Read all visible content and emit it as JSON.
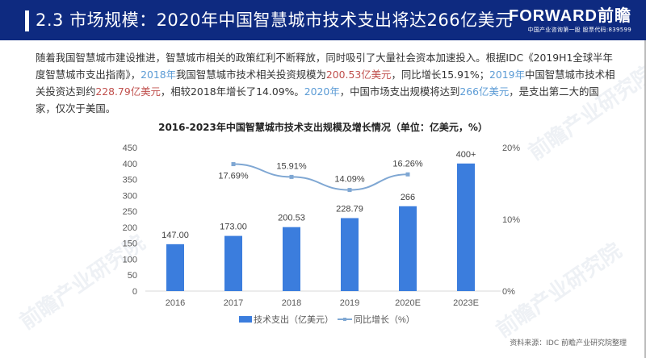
{
  "header": {
    "title": "2.3 市场规模：2020年中国智慧城市技术支出将达266亿美元",
    "logo_main": "FORWARD前瞻",
    "logo_sub": "中国产业咨询第一股  股票代码:839599",
    "background": "#0e2a80"
  },
  "paragraph": {
    "p1": "随着我国智慧城市建设推进，智慧城市相关的政策红利不断释放，同时吸引了大量社会资本加速投入。根据IDC《2019H1全球半年度智慧城市支出指南》，",
    "p2_blue": "2018年",
    "p3": "我国智慧城市技术相关投资规模为",
    "p4_red": "200.53亿美元",
    "p5": "，同比增长15.91%；",
    "p6_blue": "2019年",
    "p7": "中国智慧城市技术相关投资达到约",
    "p8_red": "228.79亿美元",
    "p9": "，相较2018年增长了14.09%。",
    "p10_blue": "2020年",
    "p11": "，中国市场支出规模将达到",
    "p12_blue": "266亿美元",
    "p13": "，是支出第二大的国家，仅次于美国。"
  },
  "watermark": "前瞻产业研究院",
  "chart_data": {
    "type": "bar",
    "title": "2016-2023年中国智慧城市技术支出规模及增长情况（单位：亿美元，%）",
    "categories": [
      "2016",
      "2017",
      "2018",
      "2019",
      "2020E",
      "2023E"
    ],
    "series": [
      {
        "name": "技术支出（亿美元）",
        "type": "bar",
        "axis": "left",
        "color": "#3b7ddd",
        "values": [
          147.0,
          173.0,
          200.53,
          228.79,
          266,
          400
        ],
        "labels": [
          "147.00",
          "173.00",
          "200.53",
          "228.79",
          "266",
          "400+"
        ]
      },
      {
        "name": "同比增长（%）",
        "type": "line",
        "axis": "right",
        "color": "#7fa7d3",
        "values": [
          null,
          17.69,
          15.91,
          14.09,
          16.26,
          null
        ],
        "labels": [
          "",
          "17.69%",
          "15.91%",
          "14.09%",
          "16.26%",
          ""
        ]
      }
    ],
    "y_left": {
      "ticks": [
        "0",
        "50",
        "100",
        "150",
        "200",
        "250",
        "300",
        "350",
        "400",
        "450"
      ],
      "range": [
        0,
        450
      ]
    },
    "y_right": {
      "ticks": [
        "0%",
        "10%",
        "20%"
      ],
      "range": [
        0,
        20
      ]
    },
    "legend": [
      "技术支出（亿美元）",
      "同比增长（%）"
    ],
    "legend_position": "bottom",
    "grid": false
  },
  "source": "资料来源：IDC 前瞻产业研究院整理"
}
